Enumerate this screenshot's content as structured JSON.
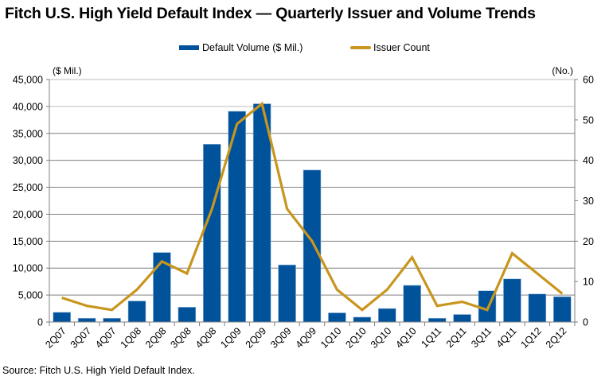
{
  "chart_data": {
    "type": "bar",
    "title": "Fitch U.S. High Yield Default Index — Quarterly Issuer and Volume Trends",
    "categories": [
      "2Q07",
      "3Q07",
      "4Q07",
      "1Q08",
      "2Q08",
      "3Q08",
      "4Q08",
      "1Q09",
      "2Q09",
      "3Q09",
      "4Q09",
      "1Q10",
      "2Q10",
      "3Q10",
      "4Q10",
      "1Q11",
      "2Q11",
      "3Q11",
      "4Q11",
      "1Q12",
      "2Q12"
    ],
    "series": [
      {
        "name": "Default Volume ($ Mil.)",
        "type": "bar",
        "axis": "left",
        "color": "#00529B",
        "values": [
          1800,
          700,
          700,
          3900,
          12900,
          2750,
          33000,
          39100,
          40500,
          10600,
          28200,
          1700,
          900,
          2500,
          6800,
          700,
          1400,
          5800,
          8000,
          5200,
          4700
        ]
      },
      {
        "name": "Issuer Count",
        "type": "line",
        "axis": "right",
        "color": "#C8961E",
        "values": [
          6,
          4,
          3,
          8,
          15,
          12,
          28,
          49,
          54,
          28,
          20,
          8,
          3,
          8,
          16,
          4,
          5,
          3,
          17,
          12,
          7
        ]
      }
    ],
    "left_axis": {
      "label": "($ Mil.)",
      "ylim": [
        0,
        45000
      ],
      "ticks": [
        0,
        5000,
        10000,
        15000,
        20000,
        25000,
        30000,
        35000,
        40000,
        45000
      ],
      "tick_labels": [
        "0",
        "5,000",
        "10,000",
        "15,000",
        "20,000",
        "25,000",
        "30,000",
        "35,000",
        "40,000",
        "45,000"
      ]
    },
    "right_axis": {
      "label": "(No.)",
      "ylim": [
        0,
        60
      ],
      "ticks": [
        0,
        10,
        20,
        30,
        40,
        50,
        60
      ],
      "tick_labels": [
        "0",
        "10",
        "20",
        "30",
        "40",
        "50",
        "60"
      ]
    },
    "xlabel": "",
    "grid": true,
    "legend_position": "top-center",
    "source": "Source: Fitch U.S. High Yield Default Index."
  }
}
